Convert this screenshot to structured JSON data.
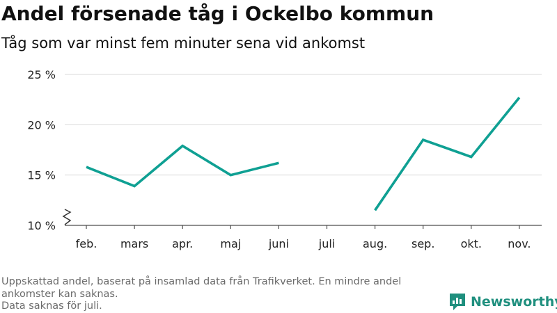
{
  "title": "Andel försenade tåg i Ockelbo kommun",
  "subtitle": "Tåg som var minst fem minuter sena vid ankomst",
  "footnote": {
    "line1": "Uppskattad andel, baserat på insamlad data från Trafikverket. En mindre andel",
    "line2": "ankomster kan saknas.",
    "line3": "Data saknas för juli."
  },
  "brand": {
    "name": "Newsworthy",
    "color": "#1f8f7e"
  },
  "chart_data": {
    "type": "line",
    "categories": [
      "feb.",
      "mars",
      "apr.",
      "maj",
      "juni",
      "juli",
      "aug.",
      "sep.",
      "okt.",
      "nov."
    ],
    "series": [
      {
        "values": [
          15.8,
          13.9,
          17.9,
          15.0,
          16.2,
          null,
          11.5,
          18.5,
          16.8,
          22.7
        ],
        "color": "#0fa093"
      }
    ],
    "yticks": [
      10,
      15,
      20,
      25
    ],
    "ytick_labels": [
      "10 %",
      "15 %",
      "20 %",
      "25 %"
    ],
    "ylim": [
      10,
      25
    ],
    "y_axis_break": true,
    "grid": "horizontal"
  }
}
